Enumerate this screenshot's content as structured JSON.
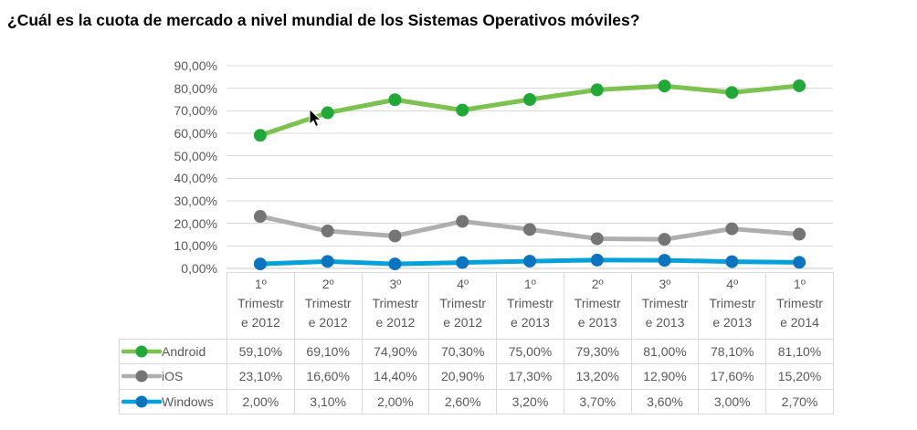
{
  "title": "¿Cuál es la cuota de mercado a nivel mundial de los Sistemas Operativos móviles?",
  "chart_data": {
    "type": "line",
    "title": "¿Cuál es la cuota de mercado a nivel mundial de los Sistemas Operativos móviles?",
    "categories": [
      "1º Trimestre 2012",
      "2º Trimestre 2012",
      "3º Trimestre 2012",
      "4º Trimestre 2012",
      "1º Trimestre 2013",
      "2º Trimestre 2013",
      "3º Trimestre 2013",
      "4º Trimestre 2013",
      "1º Trimestre 2014"
    ],
    "categories_display_lines": [
      [
        "1º",
        "Trimestr",
        "e 2012"
      ],
      [
        "2º",
        "Trimestr",
        "e 2012"
      ],
      [
        "3º",
        "Trimestr",
        "e 2012"
      ],
      [
        "4º",
        "Trimestr",
        "e 2012"
      ],
      [
        "1º",
        "Trimestr",
        "e 2013"
      ],
      [
        "2º",
        "Trimestr",
        "e 2013"
      ],
      [
        "3º",
        "Trimestr",
        "e 2013"
      ],
      [
        "4º",
        "Trimestr",
        "e 2013"
      ],
      [
        "1º",
        "Trimestr",
        "e 2014"
      ]
    ],
    "y_axis": {
      "tick_labels": [
        "90,00%",
        "80,00%",
        "70,00%",
        "60,00%",
        "50,00%",
        "40,00%",
        "30,00%",
        "20,00%",
        "10,00%",
        "0,00%"
      ],
      "min": 0,
      "max": 90,
      "step": 10,
      "grid": true,
      "format": "percent-comma-decimal"
    },
    "legend_position": "left-of-data-table",
    "series": [
      {
        "name": "Android",
        "line_color": "#7CC24E",
        "marker_color": "#22A838",
        "values": [
          59.1,
          69.1,
          74.9,
          70.3,
          75.0,
          79.3,
          81.0,
          78.1,
          81.1
        ],
        "values_display": [
          "59,10%",
          "69,10%",
          "74,90%",
          "70,30%",
          "75,00%",
          "79,30%",
          "81,00%",
          "78,10%",
          "81,10%"
        ]
      },
      {
        "name": "iOS",
        "line_color": "#B0AFAF",
        "marker_color": "#767575",
        "values": [
          23.1,
          16.6,
          14.4,
          20.9,
          17.3,
          13.2,
          12.9,
          17.6,
          15.2
        ],
        "values_display": [
          "23,10%",
          "16,60%",
          "14,40%",
          "20,90%",
          "17,30%",
          "13,20%",
          "12,90%",
          "17,60%",
          "15,20%"
        ]
      },
      {
        "name": "Windows",
        "line_color": "#05A1DB",
        "marker_color": "#0C74BE",
        "values": [
          2.0,
          3.1,
          2.0,
          2.6,
          3.2,
          3.7,
          3.6,
          3.0,
          2.7
        ],
        "values_display": [
          "2,00%",
          "3,10%",
          "2,00%",
          "2,60%",
          "3,20%",
          "3,70%",
          "3,60%",
          "3,00%",
          "2,70%"
        ]
      }
    ]
  },
  "colors": {
    "grid_line": "#D9D9D9",
    "axis_line": "#C9C9C9",
    "axis_text": "#595959",
    "table_border": "#D9D9D9",
    "table_text": "#595959",
    "title_text": "#000000",
    "background": "#FFFFFF"
  },
  "icons": {
    "cursor": "mouse-pointer-arrow"
  }
}
